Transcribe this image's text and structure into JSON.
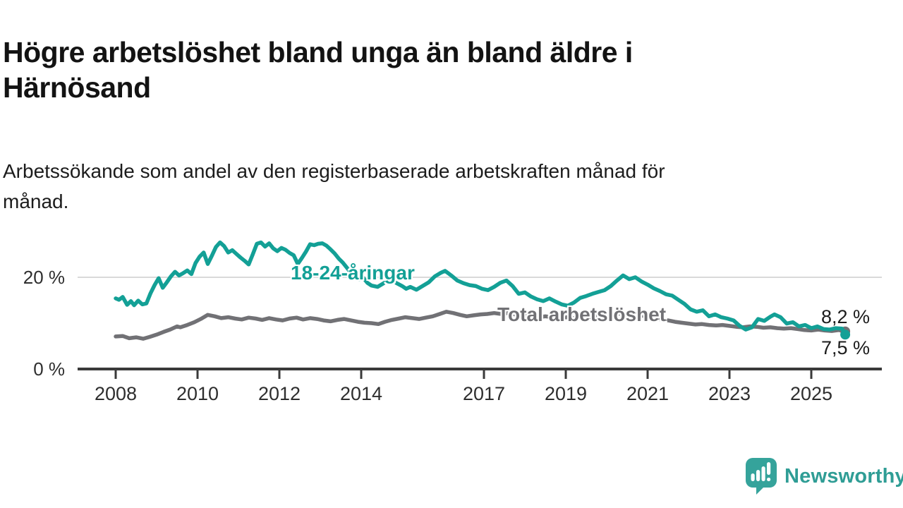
{
  "page": {
    "background": "#ffffff"
  },
  "header": {
    "title_lines": [
      "Högre arbetslöshet bland unga än bland äldre i",
      "Härnösand"
    ],
    "subtitle_lines": [
      "Arbetssökande som andel av den registerbaserade arbetskraften månad för",
      "månad."
    ]
  },
  "branding": {
    "logo_text": "Newsworthy",
    "logo_color": "#2f9d95",
    "logo_icon": "speech-bubble-bar-chart-icon",
    "logo_icon_color": "#35a39b"
  },
  "chart_data": {
    "type": "line",
    "title": "Högre arbetslöshet bland unga än bland äldre i Härnösand",
    "subtitle": "Arbetssökande som andel av den registerbaserade arbetskraften månad för månad.",
    "unit": "%",
    "legend_position": "inline-labels-on-lines",
    "x_axis": {
      "tick_years": [
        2008,
        2010,
        2012,
        2014,
        2017,
        2019,
        2021,
        2023,
        2025
      ],
      "range_years": [
        2007.1,
        2026.7
      ],
      "grid": false
    },
    "y_axis": {
      "ticks": [
        {
          "value": 20,
          "label": "20 %"
        },
        {
          "value": 0,
          "label": "0 %"
        }
      ],
      "range": [
        0,
        33
      ],
      "gridline_at": 20,
      "gridline_color": "#d9d9d9"
    },
    "axis_color": "#3a3a3a",
    "tick_label_color": "#2e2e2e",
    "series": [
      {
        "name": "18-24-åringar",
        "color": "#13a096",
        "end_value": 7.5,
        "end_value_label": "7,5 %",
        "points": [
          [
            2008.0,
            15.4
          ],
          [
            2008.08,
            15.1
          ],
          [
            2008.17,
            15.7
          ],
          [
            2008.28,
            14.0
          ],
          [
            2008.37,
            14.8
          ],
          [
            2008.45,
            13.9
          ],
          [
            2008.55,
            14.9
          ],
          [
            2008.65,
            14.1
          ],
          [
            2008.75,
            14.3
          ],
          [
            2008.85,
            16.5
          ],
          [
            2008.95,
            18.3
          ],
          [
            2009.05,
            19.8
          ],
          [
            2009.15,
            17.7
          ],
          [
            2009.25,
            18.9
          ],
          [
            2009.35,
            20.2
          ],
          [
            2009.45,
            21.2
          ],
          [
            2009.55,
            20.4
          ],
          [
            2009.65,
            20.9
          ],
          [
            2009.75,
            21.5
          ],
          [
            2009.85,
            20.7
          ],
          [
            2009.95,
            23.1
          ],
          [
            2010.05,
            24.5
          ],
          [
            2010.15,
            25.4
          ],
          [
            2010.25,
            22.9
          ],
          [
            2010.35,
            24.7
          ],
          [
            2010.45,
            26.6
          ],
          [
            2010.55,
            27.6
          ],
          [
            2010.65,
            26.8
          ],
          [
            2010.75,
            25.4
          ],
          [
            2010.85,
            25.9
          ],
          [
            2010.95,
            25.1
          ],
          [
            2011.05,
            24.3
          ],
          [
            2011.15,
            23.6
          ],
          [
            2011.25,
            22.8
          ],
          [
            2011.35,
            25.0
          ],
          [
            2011.45,
            27.3
          ],
          [
            2011.55,
            27.6
          ],
          [
            2011.65,
            26.7
          ],
          [
            2011.75,
            27.4
          ],
          [
            2011.85,
            26.3
          ],
          [
            2011.95,
            25.7
          ],
          [
            2012.05,
            26.4
          ],
          [
            2012.15,
            26.0
          ],
          [
            2012.25,
            25.3
          ],
          [
            2012.35,
            24.8
          ],
          [
            2012.45,
            22.9
          ],
          [
            2012.55,
            24.2
          ],
          [
            2012.65,
            25.6
          ],
          [
            2012.75,
            27.2
          ],
          [
            2012.85,
            27.0
          ],
          [
            2012.95,
            27.3
          ],
          [
            2013.05,
            27.4
          ],
          [
            2013.15,
            26.9
          ],
          [
            2013.25,
            26.1
          ],
          [
            2013.35,
            25.2
          ],
          [
            2013.45,
            24.1
          ],
          [
            2013.55,
            23.2
          ],
          [
            2013.65,
            22.1
          ],
          [
            2013.75,
            20.9
          ],
          [
            2013.85,
            20.2
          ],
          [
            2013.95,
            19.6
          ],
          [
            2014.05,
            19.9
          ],
          [
            2014.15,
            18.8
          ],
          [
            2014.25,
            18.2
          ],
          [
            2014.4,
            17.9
          ],
          [
            2014.55,
            18.7
          ],
          [
            2014.7,
            19.5
          ],
          [
            2014.85,
            18.8
          ],
          [
            2015.0,
            18.1
          ],
          [
            2015.1,
            17.5
          ],
          [
            2015.2,
            17.9
          ],
          [
            2015.35,
            17.3
          ],
          [
            2015.5,
            18.1
          ],
          [
            2015.65,
            18.9
          ],
          [
            2015.8,
            20.2
          ],
          [
            2015.95,
            21.0
          ],
          [
            2016.05,
            21.4
          ],
          [
            2016.2,
            20.4
          ],
          [
            2016.35,
            19.3
          ],
          [
            2016.5,
            18.7
          ],
          [
            2016.65,
            18.3
          ],
          [
            2016.8,
            18.1
          ],
          [
            2016.95,
            17.5
          ],
          [
            2017.1,
            17.2
          ],
          [
            2017.25,
            17.9
          ],
          [
            2017.4,
            18.8
          ],
          [
            2017.55,
            19.3
          ],
          [
            2017.7,
            18.1
          ],
          [
            2017.85,
            16.4
          ],
          [
            2018.0,
            16.7
          ],
          [
            2018.15,
            15.8
          ],
          [
            2018.3,
            15.2
          ],
          [
            2018.45,
            14.8
          ],
          [
            2018.6,
            15.4
          ],
          [
            2018.75,
            14.7
          ],
          [
            2018.9,
            14.1
          ],
          [
            2019.05,
            13.8
          ],
          [
            2019.2,
            14.5
          ],
          [
            2019.35,
            15.5
          ],
          [
            2019.5,
            15.9
          ],
          [
            2019.65,
            16.4
          ],
          [
            2019.8,
            16.8
          ],
          [
            2019.95,
            17.2
          ],
          [
            2020.1,
            18.1
          ],
          [
            2020.25,
            19.3
          ],
          [
            2020.4,
            20.4
          ],
          [
            2020.55,
            19.6
          ],
          [
            2020.7,
            20.0
          ],
          [
            2020.85,
            19.1
          ],
          [
            2021.0,
            18.4
          ],
          [
            2021.15,
            17.6
          ],
          [
            2021.3,
            17.0
          ],
          [
            2021.45,
            16.3
          ],
          [
            2021.6,
            16.0
          ],
          [
            2021.75,
            15.1
          ],
          [
            2021.9,
            14.2
          ],
          [
            2022.05,
            13.0
          ],
          [
            2022.2,
            12.5
          ],
          [
            2022.35,
            12.8
          ],
          [
            2022.5,
            11.5
          ],
          [
            2022.65,
            11.9
          ],
          [
            2022.8,
            11.3
          ],
          [
            2022.95,
            11.0
          ],
          [
            2023.1,
            10.6
          ],
          [
            2023.25,
            9.4
          ],
          [
            2023.4,
            8.6
          ],
          [
            2023.55,
            9.1
          ],
          [
            2023.7,
            10.9
          ],
          [
            2023.85,
            10.5
          ],
          [
            2024.0,
            11.4
          ],
          [
            2024.1,
            11.9
          ],
          [
            2024.25,
            11.3
          ],
          [
            2024.4,
            9.9
          ],
          [
            2024.55,
            10.2
          ],
          [
            2024.7,
            9.3
          ],
          [
            2024.85,
            9.6
          ],
          [
            2025.0,
            8.9
          ],
          [
            2025.15,
            9.3
          ],
          [
            2025.3,
            8.7
          ],
          [
            2025.45,
            8.6
          ],
          [
            2025.6,
            8.9
          ],
          [
            2025.75,
            8.8
          ],
          [
            2025.83,
            7.5
          ]
        ]
      },
      {
        "name": "Total arbetslöshet",
        "color": "#717175",
        "end_value": 8.2,
        "end_value_label": "8,2 %",
        "points": [
          [
            2008.0,
            7.1
          ],
          [
            2008.17,
            7.2
          ],
          [
            2008.33,
            6.7
          ],
          [
            2008.5,
            6.9
          ],
          [
            2008.67,
            6.6
          ],
          [
            2008.83,
            7.0
          ],
          [
            2009.0,
            7.5
          ],
          [
            2009.17,
            8.1
          ],
          [
            2009.33,
            8.6
          ],
          [
            2009.5,
            9.3
          ],
          [
            2009.58,
            9.1
          ],
          [
            2009.75,
            9.6
          ],
          [
            2009.92,
            10.2
          ],
          [
            2010.08,
            10.9
          ],
          [
            2010.25,
            11.8
          ],
          [
            2010.42,
            11.5
          ],
          [
            2010.58,
            11.1
          ],
          [
            2010.75,
            11.3
          ],
          [
            2010.92,
            11.0
          ],
          [
            2011.08,
            10.8
          ],
          [
            2011.25,
            11.2
          ],
          [
            2011.42,
            11.0
          ],
          [
            2011.58,
            10.7
          ],
          [
            2011.75,
            11.1
          ],
          [
            2011.92,
            10.8
          ],
          [
            2012.08,
            10.6
          ],
          [
            2012.25,
            11.0
          ],
          [
            2012.42,
            11.2
          ],
          [
            2012.58,
            10.8
          ],
          [
            2012.75,
            11.1
          ],
          [
            2012.92,
            10.9
          ],
          [
            2013.08,
            10.6
          ],
          [
            2013.25,
            10.4
          ],
          [
            2013.42,
            10.7
          ],
          [
            2013.58,
            10.9
          ],
          [
            2013.75,
            10.6
          ],
          [
            2013.92,
            10.3
          ],
          [
            2014.08,
            10.1
          ],
          [
            2014.25,
            10.0
          ],
          [
            2014.42,
            9.8
          ],
          [
            2014.58,
            10.3
          ],
          [
            2014.75,
            10.7
          ],
          [
            2014.92,
            11.0
          ],
          [
            2015.08,
            11.3
          ],
          [
            2015.25,
            11.1
          ],
          [
            2015.42,
            10.9
          ],
          [
            2015.58,
            11.2
          ],
          [
            2015.75,
            11.5
          ],
          [
            2015.92,
            12.0
          ],
          [
            2016.08,
            12.5
          ],
          [
            2016.25,
            12.2
          ],
          [
            2016.42,
            11.8
          ],
          [
            2016.58,
            11.5
          ],
          [
            2016.75,
            11.7
          ],
          [
            2016.92,
            11.9
          ],
          [
            2017.08,
            12.0
          ],
          [
            2017.25,
            12.2
          ],
          [
            2017.42,
            12.0
          ],
          [
            2017.58,
            12.2
          ],
          [
            2017.75,
            11.9
          ],
          [
            2017.92,
            11.6
          ],
          [
            2018.08,
            11.7
          ],
          [
            2018.25,
            11.5
          ],
          [
            2018.33,
            11.3
          ],
          [
            2018.5,
            11.5
          ],
          [
            2018.67,
            11.3
          ],
          [
            2018.83,
            11.1
          ],
          [
            2019.0,
            11.3
          ],
          [
            2019.17,
            11.1
          ],
          [
            2019.33,
            11.2
          ],
          [
            2019.5,
            11.4
          ],
          [
            2019.67,
            11.3
          ],
          [
            2019.83,
            11.5
          ],
          [
            2020.0,
            11.6
          ],
          [
            2020.17,
            11.9
          ],
          [
            2020.33,
            12.1
          ],
          [
            2020.5,
            12.0
          ],
          [
            2020.67,
            11.9
          ],
          [
            2020.83,
            11.7
          ],
          [
            2021.0,
            11.4
          ],
          [
            2021.17,
            11.1
          ],
          [
            2021.33,
            10.8
          ],
          [
            2021.5,
            10.6
          ],
          [
            2021.67,
            10.3
          ],
          [
            2021.83,
            10.1
          ],
          [
            2022.0,
            9.9
          ],
          [
            2022.17,
            9.7
          ],
          [
            2022.33,
            9.8
          ],
          [
            2022.5,
            9.6
          ],
          [
            2022.67,
            9.5
          ],
          [
            2022.83,
            9.6
          ],
          [
            2023.0,
            9.4
          ],
          [
            2023.17,
            9.2
          ],
          [
            2023.33,
            9.1
          ],
          [
            2023.5,
            9.3
          ],
          [
            2023.67,
            9.2
          ],
          [
            2023.83,
            9.0
          ],
          [
            2024.0,
            9.1
          ],
          [
            2024.17,
            8.9
          ],
          [
            2024.33,
            8.8
          ],
          [
            2024.5,
            8.9
          ],
          [
            2024.67,
            8.7
          ],
          [
            2024.83,
            8.5
          ],
          [
            2025.0,
            8.4
          ],
          [
            2025.17,
            8.6
          ],
          [
            2025.33,
            8.4
          ],
          [
            2025.5,
            8.3
          ],
          [
            2025.67,
            8.5
          ],
          [
            2025.83,
            8.2
          ]
        ]
      }
    ]
  }
}
